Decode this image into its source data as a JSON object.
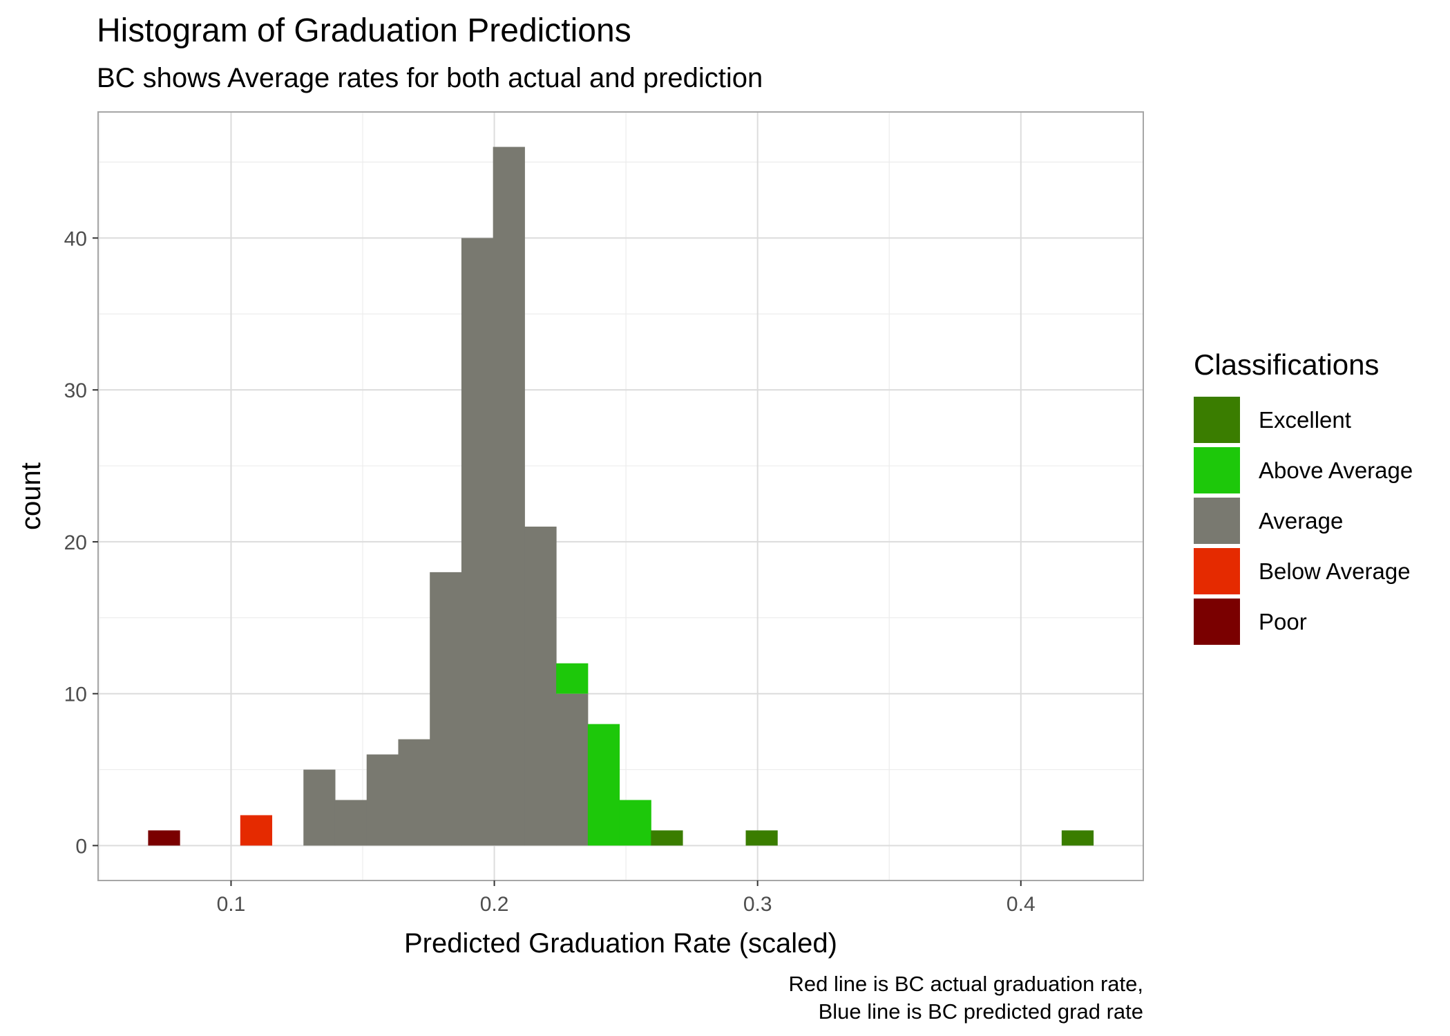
{
  "chart_data": {
    "type": "bar",
    "title": "Histogram of Graduation Predictions",
    "subtitle": "BC shows Average rates for both actual and prediction",
    "xlabel": "Predicted Graduation Rate (scaled)",
    "ylabel": "count",
    "caption": [
      "Red line is BC actual graduation rate,",
      "Blue line is BC predicted grad rate"
    ],
    "xlim": [
      0.0495,
      0.4465
    ],
    "ylim": [
      -2.3,
      48.3
    ],
    "x_ticks": [
      0.1,
      0.2,
      0.3,
      0.4
    ],
    "x_tick_labels": [
      "0.1",
      "0.2",
      "0.3",
      "0.4"
    ],
    "y_ticks": [
      0,
      10,
      20,
      30,
      40
    ],
    "y_tick_labels": [
      "0",
      "10",
      "20",
      "30",
      "40"
    ],
    "grid": true,
    "bin_width": 0.012,
    "legend": {
      "title": "Classifications",
      "position": "right",
      "items": [
        {
          "label": "Excellent",
          "color": "#3a7d00"
        },
        {
          "label": "Above Average",
          "color": "#1dc80a"
        },
        {
          "label": "Average",
          "color": "#797970"
        },
        {
          "label": "Below Average",
          "color": "#e52a00"
        },
        {
          "label": "Poor",
          "color": "#7a0000"
        }
      ]
    },
    "series": [
      {
        "name": "Poor",
        "color": "#7a0000",
        "bins": [
          {
            "x": 0.0745,
            "count": 1
          }
        ]
      },
      {
        "name": "Below Average",
        "color": "#e52a00",
        "bins": [
          {
            "x": 0.1095,
            "count": 2
          }
        ]
      },
      {
        "name": "Average",
        "color": "#797970",
        "bins": [
          {
            "x": 0.1335,
            "count": 5
          },
          {
            "x": 0.1455,
            "count": 3
          },
          {
            "x": 0.1575,
            "count": 6
          },
          {
            "x": 0.1695,
            "count": 7
          },
          {
            "x": 0.1815,
            "count": 18
          },
          {
            "x": 0.1935,
            "count": 40
          },
          {
            "x": 0.2055,
            "count": 46
          },
          {
            "x": 0.2175,
            "count": 21
          },
          {
            "x": 0.2295,
            "count": 10
          }
        ]
      },
      {
        "name": "Above Average",
        "color": "#1dc80a",
        "bins": [
          {
            "x": 0.2295,
            "count": 2,
            "stack_base": 10
          },
          {
            "x": 0.2415,
            "count": 8
          },
          {
            "x": 0.2535,
            "count": 3
          }
        ]
      },
      {
        "name": "Excellent",
        "color": "#3a7d00",
        "bins": [
          {
            "x": 0.2655,
            "count": 1
          },
          {
            "x": 0.3015,
            "count": 1
          },
          {
            "x": 0.4215,
            "count": 1
          }
        ]
      }
    ]
  }
}
